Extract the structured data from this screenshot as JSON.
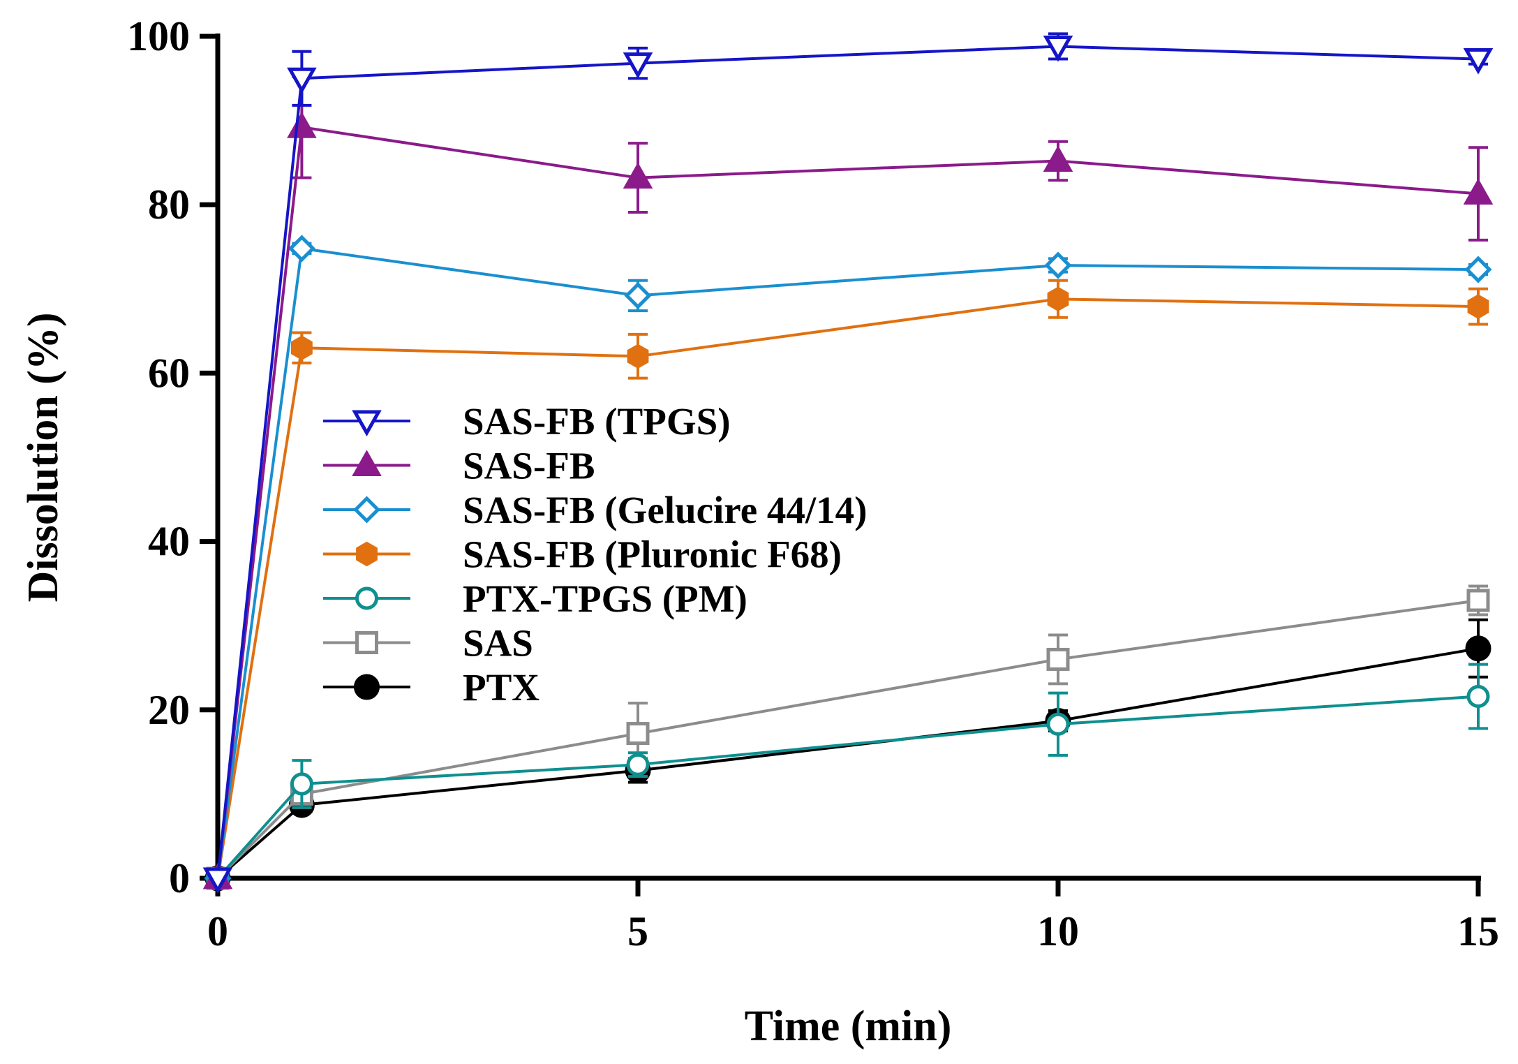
{
  "chart_data": {
    "type": "line",
    "title": "",
    "xlabel": "Time (min)",
    "ylabel": "Dissolution (%)",
    "xlim": [
      0,
      15
    ],
    "ylim": [
      0,
      100
    ],
    "xticks": [
      0,
      5,
      10,
      15
    ],
    "yticks": [
      0,
      20,
      40,
      60,
      80,
      100
    ],
    "x": [
      0,
      1,
      5,
      10,
      15
    ],
    "legend_position": "center-left",
    "series": [
      {
        "name": "SAS-FB (TPGS)",
        "color": "#1515c8",
        "marker": "triangle-down-open",
        "values": [
          0,
          95.0,
          96.8,
          98.8,
          97.3
        ],
        "errors": [
          0,
          3.2,
          1.8,
          1.5,
          0.6
        ]
      },
      {
        "name": "SAS-FB",
        "color": "#8b1a8b",
        "marker": "triangle-up-filled",
        "values": [
          0,
          89.2,
          83.2,
          85.2,
          81.3
        ],
        "errors": [
          0,
          6.0,
          4.1,
          2.3,
          5.5
        ]
      },
      {
        "name": "SAS-FB (Gelucire 44/14)",
        "color": "#1a8fd0",
        "marker": "diamond-open",
        "values": [
          0,
          74.8,
          69.2,
          72.8,
          72.3
        ],
        "errors": [
          0,
          0.6,
          1.8,
          0.8,
          0.6
        ]
      },
      {
        "name": "SAS-FB (Pluronic F68)",
        "color": "#e07010",
        "marker": "hexagon-filled",
        "values": [
          0,
          63.0,
          62.0,
          68.8,
          67.9
        ],
        "errors": [
          0,
          1.8,
          2.6,
          2.2,
          2.1
        ]
      },
      {
        "name": "PTX-TPGS (PM)",
        "color": "#0f8f8f",
        "marker": "circle-open",
        "values": [
          0,
          11.2,
          13.5,
          18.3,
          21.6
        ],
        "errors": [
          0,
          2.8,
          1.4,
          3.7,
          3.8
        ]
      },
      {
        "name": "SAS",
        "color": "#8c8c8c",
        "marker": "square-open",
        "values": [
          0,
          10.0,
          17.2,
          26.0,
          33.0
        ],
        "errors": [
          0,
          1.6,
          3.6,
          2.9,
          1.7
        ]
      },
      {
        "name": "PTX",
        "color": "#000000",
        "marker": "circle-filled",
        "values": [
          0,
          8.7,
          12.8,
          18.7,
          27.3
        ],
        "errors": [
          0,
          0.6,
          1.4,
          1.2,
          3.4
        ]
      }
    ]
  }
}
